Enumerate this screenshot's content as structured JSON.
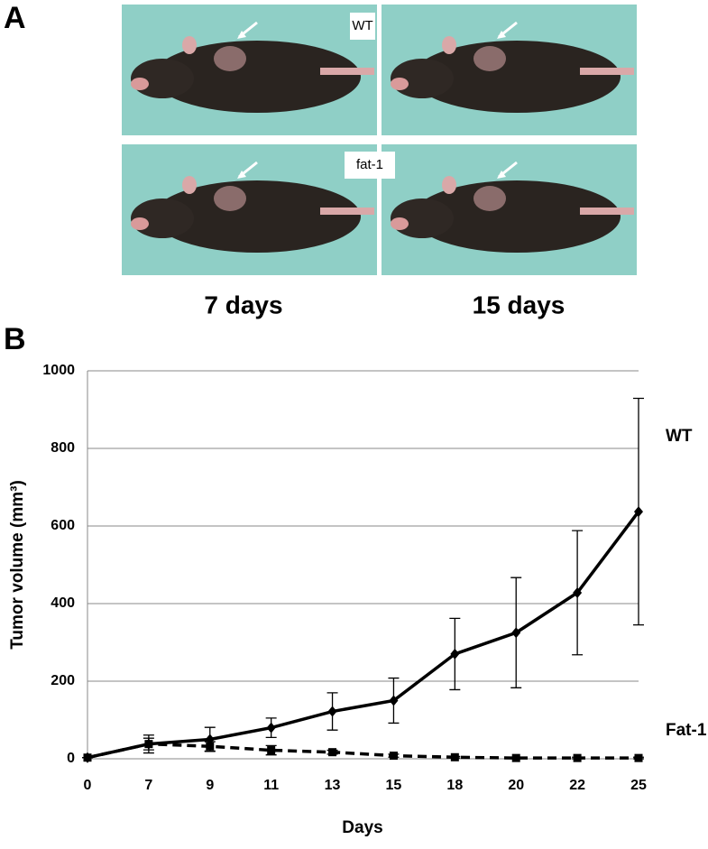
{
  "panel_a": {
    "label": "A",
    "top_tag": "WT",
    "bottom_tag": "fat-1",
    "left_caption": "7 days",
    "right_caption": "15 days"
  },
  "panel_b": {
    "label": "B"
  },
  "chart_data": {
    "type": "line",
    "x_label": "Days",
    "y_label": "Tumor volume (mm³)",
    "categories": [
      "0",
      "7",
      "9",
      "11",
      "13",
      "15",
      "18",
      "20",
      "22",
      "25"
    ],
    "series": [
      {
        "name": "WT",
        "color": "#000000",
        "marker": "diamond",
        "dashed": false,
        "values": [
          3,
          38,
          50,
          80,
          122,
          150,
          270,
          325,
          428,
          637
        ],
        "errors": [
          0,
          23,
          31,
          25,
          48,
          58,
          92,
          142,
          160,
          292
        ]
      },
      {
        "name": "Fat-1",
        "color": "#000000",
        "marker": "square",
        "dashed": true,
        "values": [
          3,
          38,
          32,
          22,
          17,
          8,
          4,
          2,
          2,
          2
        ],
        "errors": [
          0,
          15,
          12,
          12,
          5,
          4,
          2,
          2,
          2,
          2
        ]
      }
    ],
    "ylim": [
      0,
      1000
    ],
    "yticks": [
      0,
      200,
      400,
      600,
      800,
      1000
    ],
    "grid": true
  }
}
